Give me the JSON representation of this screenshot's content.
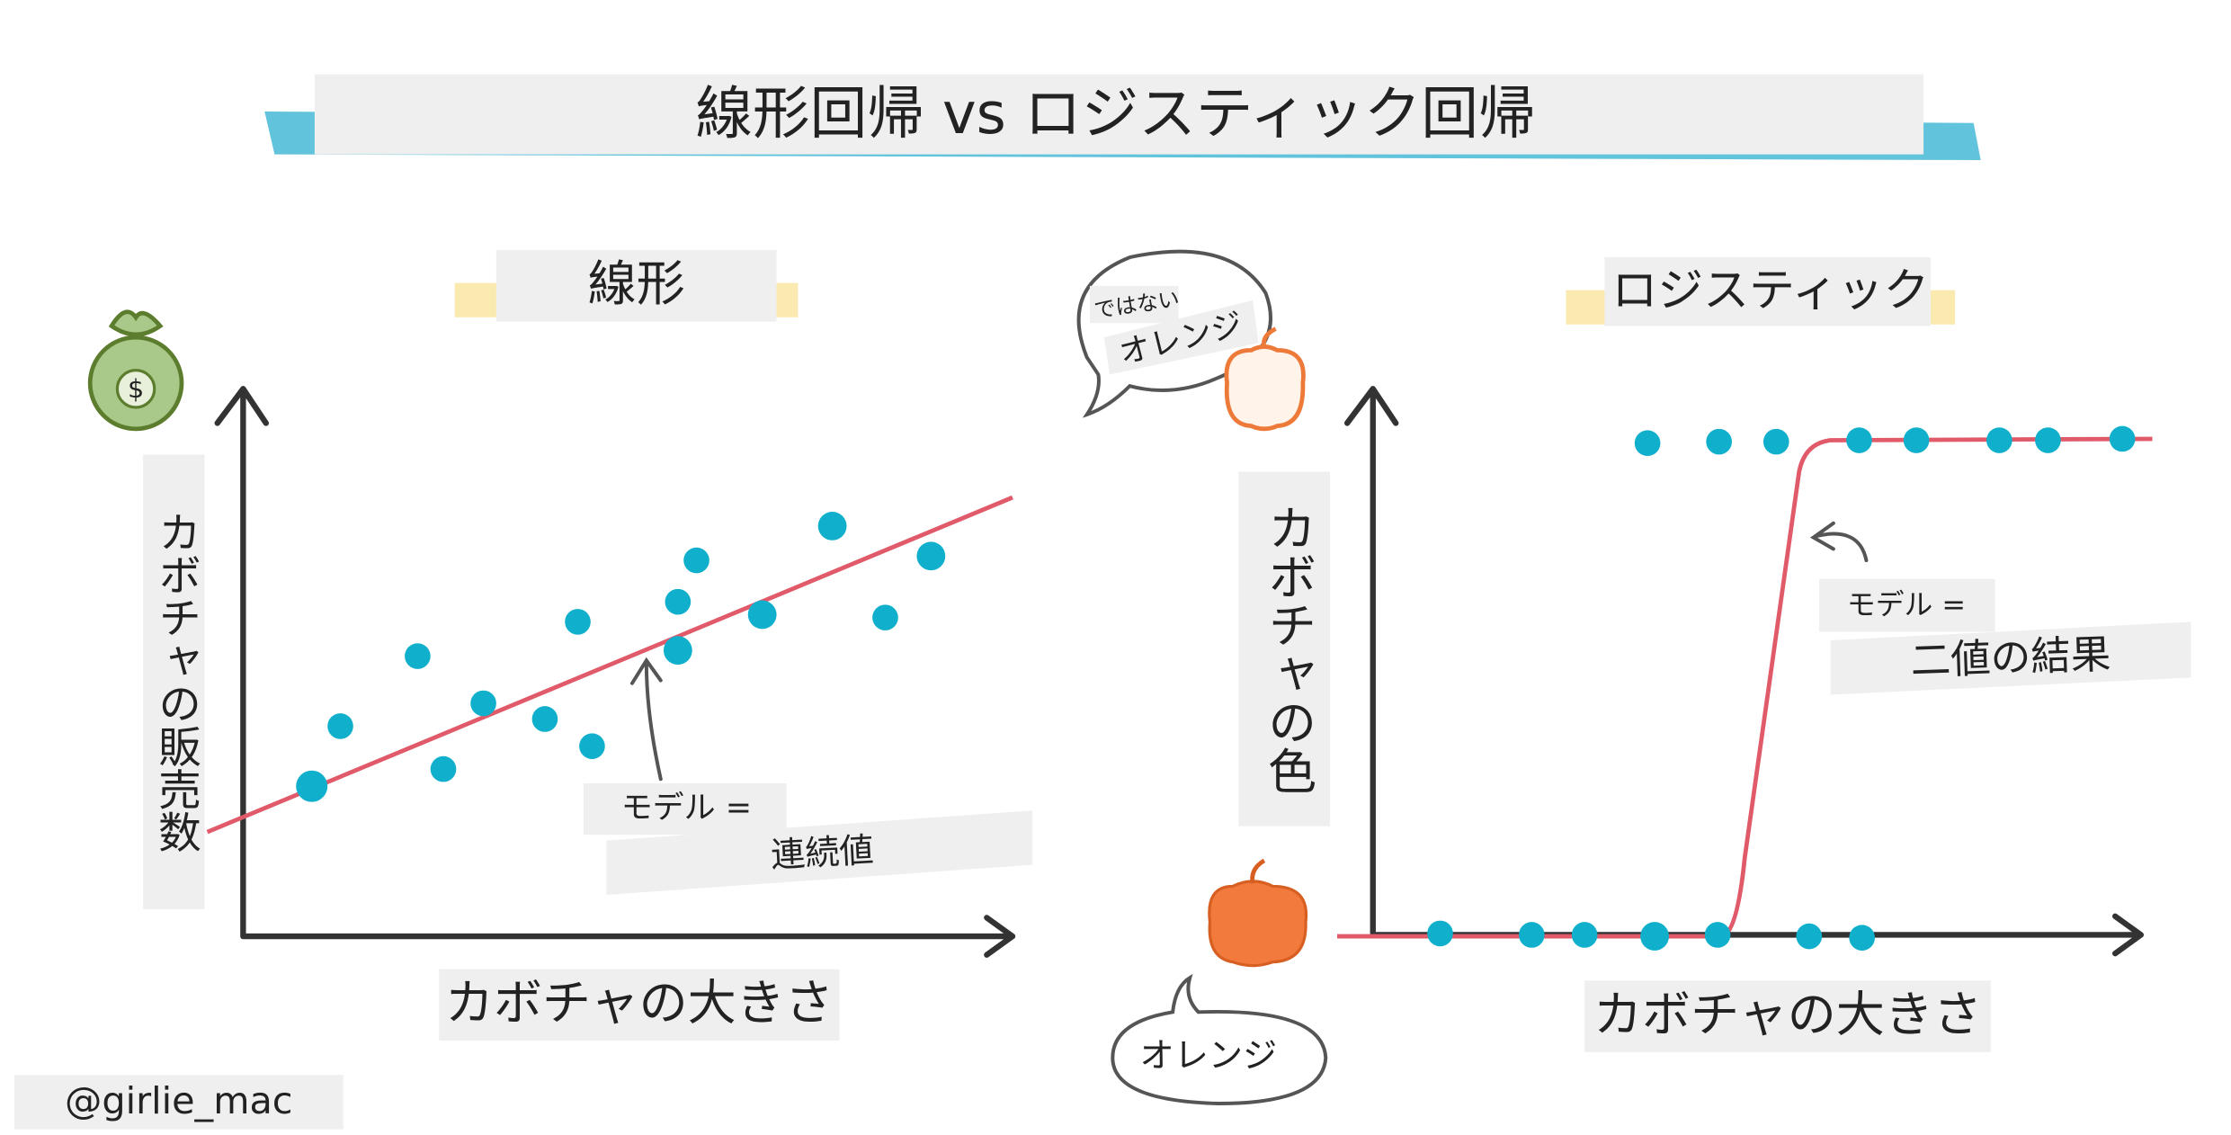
{
  "header": {
    "title": "線形回帰 vs ロジスティック回帰"
  },
  "panels": [
    {
      "title": "線形",
      "y_label": "カボチャの販売数",
      "x_label": "カボチャの大きさ",
      "model_label": "モデル =",
      "model_value": "連続値"
    },
    {
      "title": "ロジスティック",
      "y_label": "カボチャの色",
      "x_label": "カボチャの大きさ",
      "model_label": "モデル =",
      "model_value": "二値の結果"
    }
  ],
  "bubbles": {
    "not_prefix": "ではない",
    "not_orange": "オレンジ",
    "orange": "オレンジ"
  },
  "icon_label": "$",
  "credit": "@girlie_mac"
}
